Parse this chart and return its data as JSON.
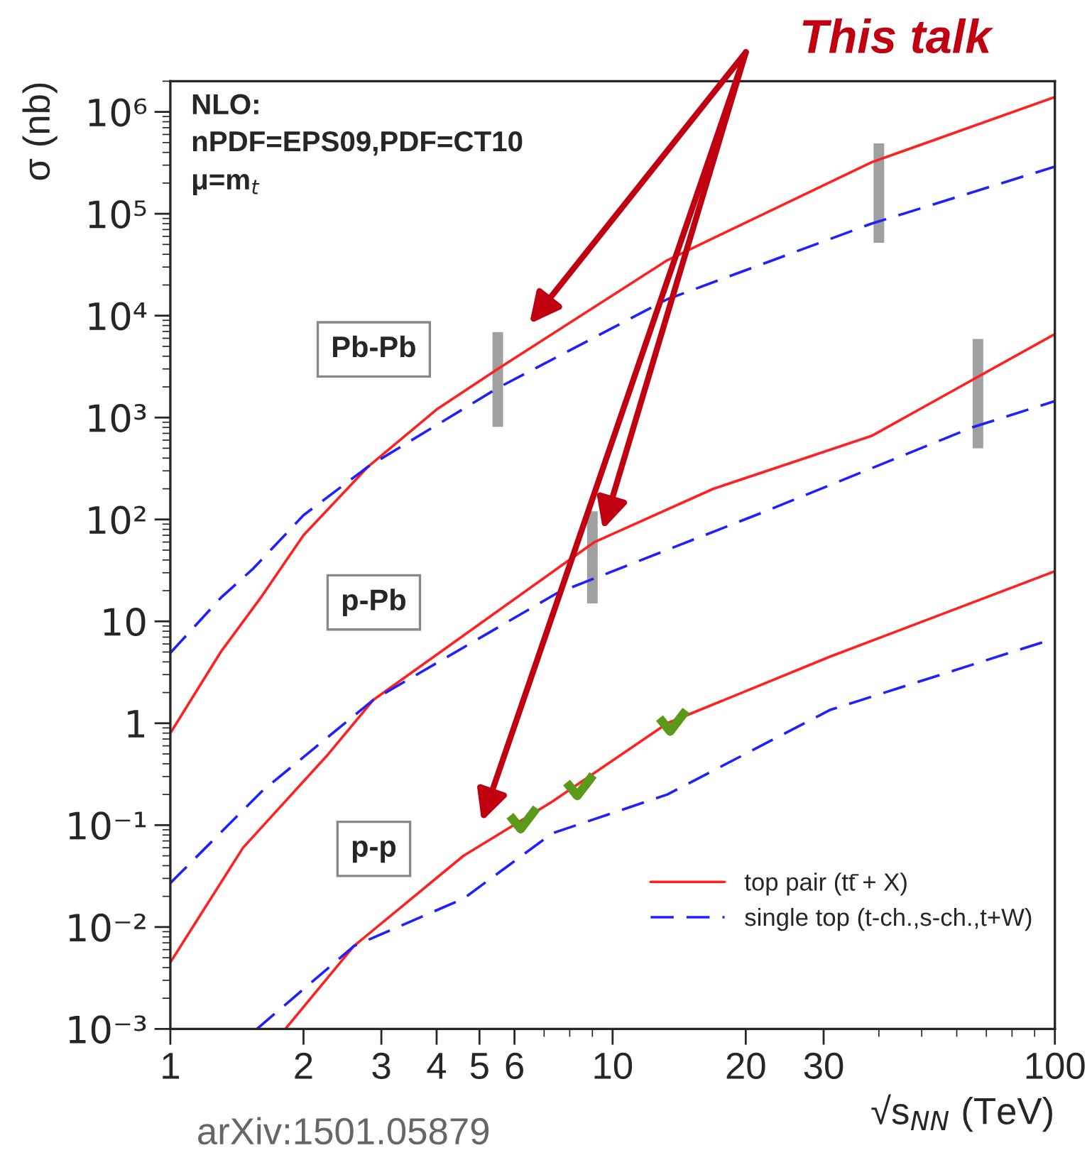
{
  "chart_data": {
    "type": "line",
    "xlabel": "√s$_{NN}$ (TeV)",
    "ylabel": "σ (nb)",
    "log": "xy",
    "xlim": [
      1,
      100
    ],
    "ylim": [
      0.001,
      2000000
    ],
    "xticks": [
      1,
      2,
      3,
      4,
      5,
      6,
      {
        "value": 7,
        "label": null
      },
      {
        "value": 8,
        "label": null
      },
      {
        "value": 9,
        "label": null
      },
      10,
      20,
      30,
      {
        "value": 40,
        "label": null
      },
      {
        "value": 50,
        "label": null
      },
      {
        "value": 60,
        "label": null
      },
      {
        "value": 70,
        "label": null
      },
      {
        "value": 80,
        "label": null
      },
      {
        "value": 90,
        "label": null
      },
      100
    ],
    "yticks": [
      {
        "value": 0.001,
        "label": "10⁻³"
      },
      {
        "value": 0.01,
        "label": "10⁻²"
      },
      {
        "value": 0.1,
        "label": "10⁻¹"
      },
      1,
      10,
      {
        "value": 100,
        "label": "10²"
      },
      {
        "value": 1000,
        "label": "10³"
      },
      {
        "value": 10000,
        "label": "10⁴"
      },
      {
        "value": 100000,
        "label": "10⁵"
      },
      {
        "value": 1000000,
        "label": "10⁶"
      }
    ],
    "grid": false,
    "legend": "bottom right",
    "series": [
      {
        "name": "top pair (tt̄ + X)",
        "color": "#ff2020",
        "line_style": "solid",
        "x": [
          1,
          1.3,
          1.6,
          2,
          2.8,
          4,
          5.5,
          13.3,
          38.5,
          100
        ],
        "values": [
          0.8,
          5,
          17,
          70,
          330,
          1200,
          3000,
          35000,
          320000,
          1400000
        ]
      },
      {
        "name": "single top (t-ch.,s-ch.,t+W)",
        "color": "#2020ff",
        "line_style": "dashed",
        "x": [
          1,
          1.3,
          1.54,
          2,
          2.8,
          5.5,
          13.3,
          38.5,
          100
        ],
        "values": [
          4.9,
          17,
          33,
          110,
          330,
          1950,
          14500,
          80000,
          290000
        ]
      },
      {
        "color": "#ff2020",
        "line_style": "solid",
        "x": [
          1,
          1.46,
          2.25,
          2.88,
          7.5,
          9.1,
          16.9,
          38.5,
          100
        ],
        "values": [
          0.0045,
          0.06,
          0.47,
          1.7,
          33,
          60,
          200,
          660,
          6600
        ]
      },
      {
        "color": "#2020ff",
        "line_style": "dashed",
        "x": [
          1,
          1.62,
          2.88,
          7.5,
          21.6,
          65,
          100
        ],
        "values": [
          0.027,
          0.22,
          1.7,
          19,
          115,
          800,
          1450
        ]
      },
      {
        "color": "#ff2020",
        "line_style": "solid",
        "x": [
          1.82,
          2.6,
          4.6,
          7.3,
          13.3,
          31,
          100
        ],
        "values": [
          0.001,
          0.0065,
          0.05,
          0.17,
          1.0,
          4.5,
          31
        ]
      },
      {
        "color": "#2020ff",
        "line_style": "dashed",
        "x": [
          1.57,
          2.6,
          4.6,
          7.3,
          13.3,
          31,
          100
        ],
        "values": [
          0.001,
          0.0065,
          0.019,
          0.083,
          0.2,
          1.35,
          6.8
        ]
      },
      {
        "type": "bar",
        "color": "#a0a0a0",
        "x": [
          5.5,
          9,
          40,
          67
        ],
        "base": [
          810,
          15,
          52000,
          500
        ],
        "values": [
          6090,
          105,
          438000,
          5400
        ]
      }
    ],
    "annotations": [
      "NLO:",
      "nPDF=EPS09,PDF=CT10",
      "μ=m$_{t}$",
      "Pb-Pb",
      "p-Pb",
      "p-p",
      "arXiv:1501.05879",
      "This talk"
    ]
  }
}
